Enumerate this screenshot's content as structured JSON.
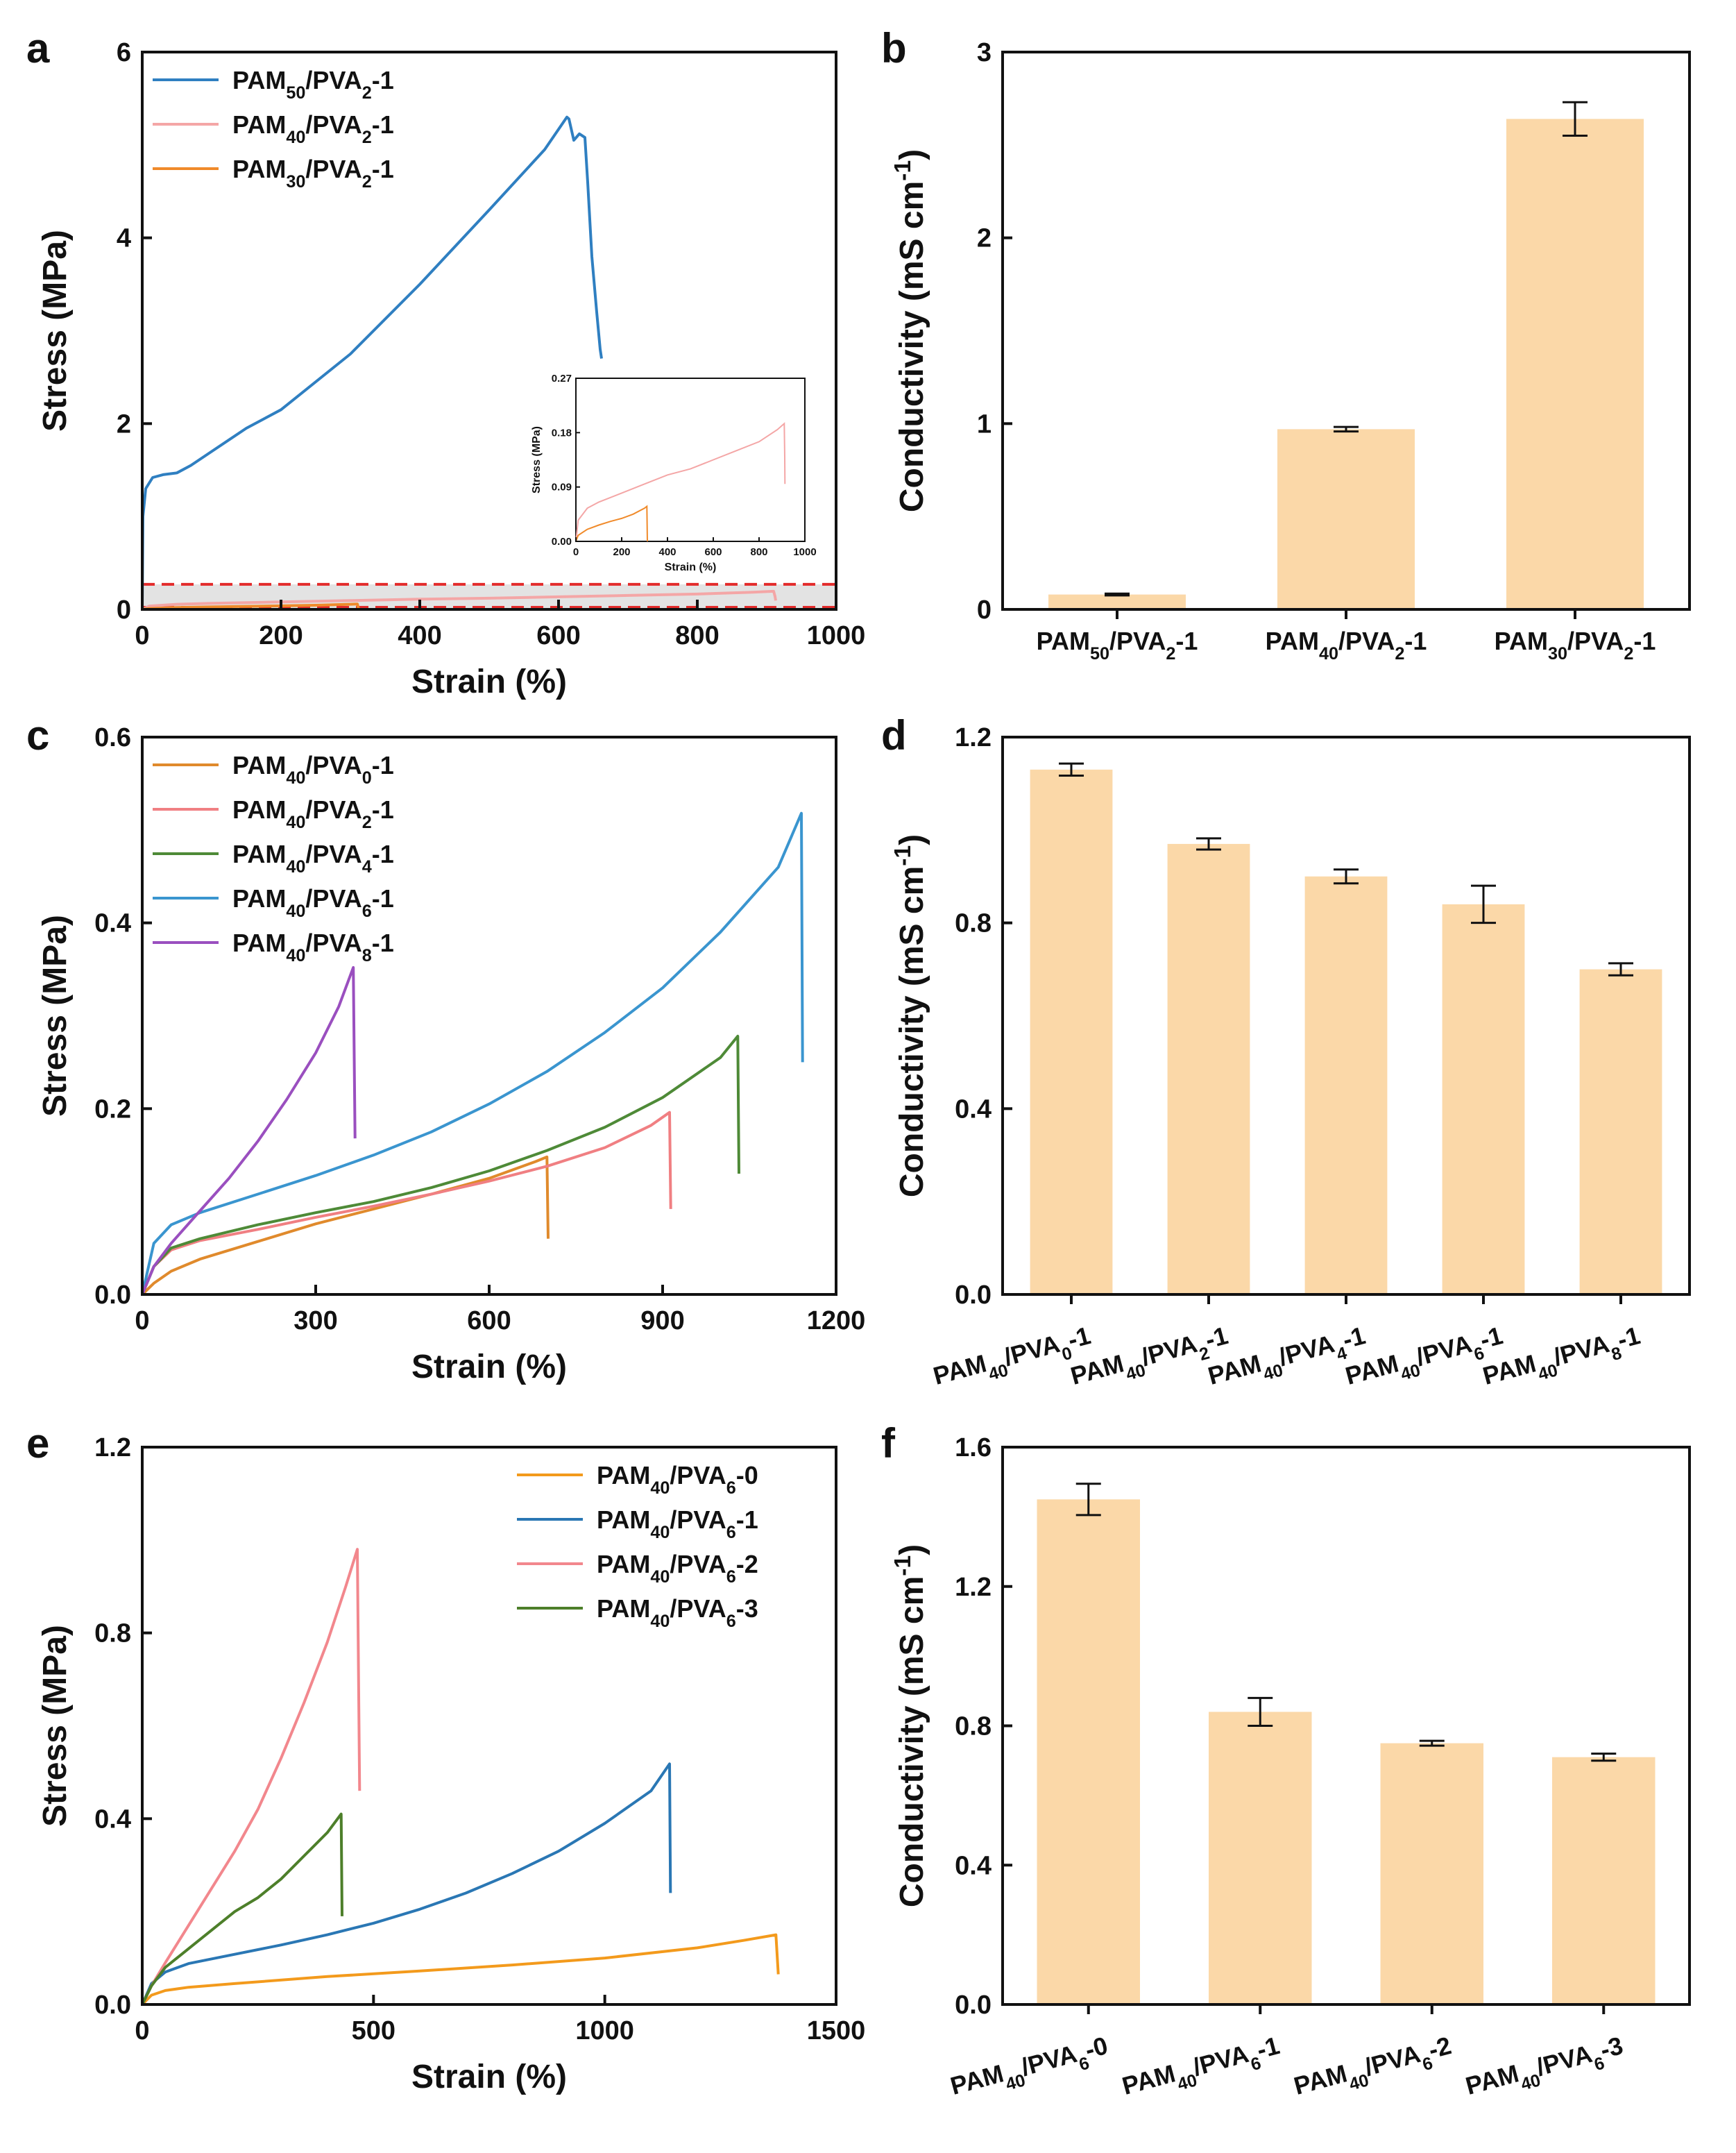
{
  "figure": {
    "panel_labels": [
      "a",
      "b",
      "c",
      "d",
      "e",
      "f"
    ]
  },
  "chart_data": [
    {
      "id": "a",
      "type": "line",
      "xlabel": "Strain (%)",
      "ylabel": "Stress (MPa)",
      "xlim": [
        0,
        1000
      ],
      "ylim": [
        0,
        6
      ],
      "xticks": [
        "0",
        "200",
        "400",
        "600",
        "800",
        "1000"
      ],
      "yticks": [
        "0",
        "2",
        "4",
        "6"
      ],
      "legend_position": "top-left",
      "highlight_band_ylim": [
        0,
        0.27
      ],
      "series": [
        {
          "label": "PAM50/PVA2-1",
          "label_main": "PAM",
          "label_sub1": "50",
          "label_mid": "/PVA",
          "label_sub2": "2",
          "label_end": "-1",
          "color": "#2f7fc1",
          "x": [
            0,
            1,
            5,
            15,
            30,
            50,
            70,
            100,
            150,
            200,
            300,
            400,
            500,
            580,
            612,
            615,
            622,
            630,
            638,
            642,
            648,
            655,
            660,
            662
          ],
          "y": [
            0,
            1.0,
            1.3,
            1.42,
            1.45,
            1.47,
            1.55,
            1.7,
            1.95,
            2.15,
            2.75,
            3.5,
            4.3,
            4.95,
            5.3,
            5.28,
            5.05,
            5.12,
            5.08,
            4.6,
            3.8,
            3.2,
            2.8,
            2.7
          ]
        },
        {
          "label": "PAM40/PVA2-1",
          "label_main": "PAM",
          "label_sub1": "40",
          "label_mid": "/PVA",
          "label_sub2": "2",
          "label_end": "-1",
          "color": "#f4a6a6",
          "x": [
            0,
            10,
            50,
            100,
            200,
            300,
            400,
            500,
            600,
            700,
            800,
            880,
            910,
            912,
            913
          ],
          "y": [
            0,
            0.035,
            0.055,
            0.065,
            0.08,
            0.095,
            0.11,
            0.12,
            0.135,
            0.15,
            0.165,
            0.185,
            0.195,
            0.14,
            0.095
          ]
        },
        {
          "label": "PAM30/PVA2-1",
          "label_main": "PAM",
          "label_sub1": "30",
          "label_mid": "/PVA",
          "label_sub2": "2",
          "label_end": "-1",
          "color": "#f08a2a",
          "x": [
            0,
            10,
            50,
            100,
            150,
            200,
            250,
            300,
            310,
            312
          ],
          "y": [
            0,
            0.01,
            0.02,
            0.027,
            0.033,
            0.038,
            0.045,
            0.055,
            0.058,
            0.0
          ]
        }
      ],
      "inset": {
        "xlabel": "Strain (%)",
        "ylabel": "Stress (MPa)",
        "xlim": [
          0,
          1000
        ],
        "ylim": [
          0,
          0.27
        ],
        "xticks": [
          "0",
          "200",
          "400",
          "600",
          "800",
          "1000"
        ],
        "yticks": [
          "0.00",
          "0.09",
          "0.18",
          "0.27"
        ]
      }
    },
    {
      "id": "b",
      "type": "bar",
      "ylabel_main": "Conductivity (mS cm",
      "ylabel_sup": "-1",
      "ylabel_end": ")",
      "ylim": [
        0,
        3
      ],
      "yticks": [
        "0",
        "1",
        "2",
        "3"
      ],
      "categories": [
        {
          "main": "PAM",
          "sub1": "50",
          "mid": "/PVA",
          "sub2": "2",
          "end": "-1"
        },
        {
          "main": "PAM",
          "sub1": "40",
          "mid": "/PVA",
          "sub2": "2",
          "end": "-1"
        },
        {
          "main": "PAM",
          "sub1": "30",
          "mid": "/PVA",
          "sub2": "2",
          "end": "-1"
        }
      ],
      "values": [
        0.08,
        0.97,
        2.64
      ],
      "errors": [
        0.005,
        0.012,
        0.09
      ]
    },
    {
      "id": "c",
      "type": "line",
      "xlabel": "Strain (%)",
      "ylabel": "Stress (MPa)",
      "xlim": [
        0,
        1200
      ],
      "ylim": [
        0,
        0.6
      ],
      "xticks": [
        "0",
        "300",
        "600",
        "900",
        "1200"
      ],
      "yticks": [
        "0.0",
        "0.2",
        "0.4",
        "0.6"
      ],
      "legend_position": "top-left",
      "series": [
        {
          "label": "PAM40/PVA0-1",
          "label_main": "PAM",
          "label_sub1": "40",
          "label_mid": "/PVA",
          "label_sub2": "0",
          "label_end": "-1",
          "color": "#e08a2c",
          "x": [
            0,
            20,
            50,
            100,
            200,
            300,
            400,
            500,
            600,
            680,
            700,
            702
          ],
          "y": [
            0,
            0.012,
            0.025,
            0.038,
            0.057,
            0.076,
            0.092,
            0.108,
            0.125,
            0.143,
            0.148,
            0.06
          ]
        },
        {
          "label": "PAM40/PVA2-1",
          "label_main": "PAM",
          "label_sub1": "40",
          "label_mid": "/PVA",
          "label_sub2": "2",
          "label_end": "-1",
          "color": "#f07f82",
          "x": [
            0,
            20,
            50,
            100,
            200,
            300,
            400,
            500,
            600,
            700,
            800,
            880,
            912,
            914
          ],
          "y": [
            0,
            0.03,
            0.048,
            0.058,
            0.07,
            0.083,
            0.095,
            0.108,
            0.122,
            0.138,
            0.158,
            0.182,
            0.196,
            0.092
          ]
        },
        {
          "label": "PAM40/PVA4-1",
          "label_main": "PAM",
          "label_sub1": "40",
          "label_mid": "/PVA",
          "label_sub2": "4",
          "label_end": "-1",
          "color": "#4e8a37",
          "x": [
            0,
            20,
            50,
            100,
            200,
            300,
            400,
            500,
            600,
            700,
            800,
            900,
            1000,
            1030,
            1032
          ],
          "y": [
            0,
            0.03,
            0.05,
            0.06,
            0.075,
            0.088,
            0.1,
            0.115,
            0.133,
            0.155,
            0.18,
            0.212,
            0.255,
            0.278,
            0.13
          ]
        },
        {
          "label": "PAM40/PVA6-1",
          "label_main": "PAM",
          "label_sub1": "40",
          "label_mid": "/PVA",
          "label_sub2": "6",
          "label_end": "-1",
          "color": "#3a95cf",
          "x": [
            0,
            20,
            50,
            100,
            200,
            300,
            400,
            500,
            600,
            700,
            800,
            900,
            1000,
            1100,
            1140,
            1142
          ],
          "y": [
            0,
            0.055,
            0.075,
            0.088,
            0.108,
            0.128,
            0.15,
            0.175,
            0.205,
            0.24,
            0.282,
            0.33,
            0.39,
            0.46,
            0.518,
            0.25
          ]
        },
        {
          "label": "PAM40/PVA8-1",
          "label_main": "PAM",
          "label_sub1": "40",
          "label_mid": "/PVA",
          "label_sub2": "8",
          "label_end": "-1",
          "color": "#9a4fbf",
          "x": [
            0,
            20,
            50,
            100,
            150,
            200,
            250,
            300,
            340,
            365,
            368
          ],
          "y": [
            0,
            0.03,
            0.055,
            0.09,
            0.125,
            0.165,
            0.21,
            0.26,
            0.31,
            0.352,
            0.168
          ]
        }
      ]
    },
    {
      "id": "d",
      "type": "bar",
      "ylabel_main": "Conductivity (mS cm",
      "ylabel_sup": "-1",
      "ylabel_end": ")",
      "ylim": [
        0,
        1.2
      ],
      "yticks": [
        "0.0",
        "0.4",
        "0.8",
        "1.2"
      ],
      "categories": [
        {
          "main": "PAM",
          "sub1": "40",
          "mid": "/PVA",
          "sub2": "0",
          "end": "-1"
        },
        {
          "main": "PAM",
          "sub1": "40",
          "mid": "/PVA",
          "sub2": "2",
          "end": "-1"
        },
        {
          "main": "PAM",
          "sub1": "40",
          "mid": "/PVA",
          "sub2": "4",
          "end": "-1"
        },
        {
          "main": "PAM",
          "sub1": "40",
          "mid": "/PVA",
          "sub2": "6",
          "end": "-1"
        },
        {
          "main": "PAM",
          "sub1": "40",
          "mid": "/PVA",
          "sub2": "8",
          "end": "-1"
        }
      ],
      "values": [
        1.13,
        0.97,
        0.9,
        0.84,
        0.7
      ],
      "errors": [
        0.013,
        0.012,
        0.015,
        0.04,
        0.013
      ]
    },
    {
      "id": "e",
      "type": "line",
      "xlabel": "Strain (%)",
      "ylabel": "Stress (MPa)",
      "xlim": [
        0,
        1500
      ],
      "ylim": [
        0,
        1.2
      ],
      "xticks": [
        "0",
        "500",
        "1000",
        "1500"
      ],
      "yticks": [
        "0.0",
        "0.4",
        "0.8",
        "1.2"
      ],
      "legend_position": "top-right",
      "series": [
        {
          "label": "PAM40/PVA6-0",
          "label_main": "PAM",
          "label_sub1": "40",
          "label_mid": "/PVA",
          "label_sub2": "6",
          "label_end": "-0",
          "color": "#f39a1c",
          "x": [
            0,
            20,
            50,
            100,
            200,
            400,
            600,
            800,
            1000,
            1200,
            1300,
            1370,
            1375
          ],
          "y": [
            0,
            0.02,
            0.03,
            0.037,
            0.045,
            0.06,
            0.072,
            0.085,
            0.1,
            0.122,
            0.138,
            0.15,
            0.065
          ]
        },
        {
          "label": "PAM40/PVA6-1",
          "label_main": "PAM",
          "label_sub1": "40",
          "label_mid": "/PVA",
          "label_sub2": "6",
          "label_end": "-1",
          "color": "#2a77b4",
          "x": [
            0,
            20,
            50,
            100,
            200,
            300,
            400,
            500,
            600,
            700,
            800,
            900,
            1000,
            1100,
            1140,
            1142
          ],
          "y": [
            0,
            0.045,
            0.07,
            0.088,
            0.108,
            0.128,
            0.15,
            0.175,
            0.205,
            0.24,
            0.282,
            0.33,
            0.39,
            0.46,
            0.518,
            0.24
          ]
        },
        {
          "label": "PAM40/PVA6-2",
          "label_main": "PAM",
          "label_sub1": "40",
          "label_mid": "/PVA",
          "label_sub2": "6",
          "label_end": "-2",
          "color": "#f2878d",
          "x": [
            0,
            20,
            50,
            100,
            150,
            200,
            250,
            300,
            350,
            400,
            440,
            465,
            470
          ],
          "y": [
            0,
            0.04,
            0.09,
            0.17,
            0.25,
            0.33,
            0.42,
            0.53,
            0.65,
            0.78,
            0.9,
            0.98,
            0.46
          ]
        },
        {
          "label": "PAM40/PVA6-3",
          "label_main": "PAM",
          "label_sub1": "40",
          "label_mid": "/PVA",
          "label_sub2": "6",
          "label_end": "-3",
          "color": "#4d7f2a",
          "x": [
            0,
            20,
            50,
            100,
            150,
            200,
            250,
            300,
            350,
            400,
            430,
            432
          ],
          "y": [
            0,
            0.04,
            0.08,
            0.12,
            0.16,
            0.2,
            0.23,
            0.27,
            0.32,
            0.37,
            0.41,
            0.19
          ]
        }
      ]
    },
    {
      "id": "f",
      "type": "bar",
      "ylabel_main": "Conductivity (mS cm",
      "ylabel_sup": "-1",
      "ylabel_end": ")",
      "ylim": [
        0,
        1.6
      ],
      "yticks": [
        "0.0",
        "0.4",
        "0.8",
        "1.2",
        "1.6"
      ],
      "categories": [
        {
          "main": "PAM",
          "sub1": "40",
          "mid": "/PVA",
          "sub2": "6",
          "end": "-0"
        },
        {
          "main": "PAM",
          "sub1": "40",
          "mid": "/PVA",
          "sub2": "6",
          "end": "-1"
        },
        {
          "main": "PAM",
          "sub1": "40",
          "mid": "/PVA",
          "sub2": "6",
          "end": "-2"
        },
        {
          "main": "PAM",
          "sub1": "40",
          "mid": "/PVA",
          "sub2": "6",
          "end": "-3"
        }
      ],
      "values": [
        1.45,
        0.84,
        0.75,
        0.71
      ],
      "errors": [
        0.045,
        0.04,
        0.007,
        0.01
      ]
    }
  ],
  "style": {
    "bar_color": "#fbd8a8",
    "axis_color": "#111111",
    "highlight_fill": "#e3e3e3",
    "highlight_line": "#e32b2b",
    "inset_color": "#111111"
  }
}
